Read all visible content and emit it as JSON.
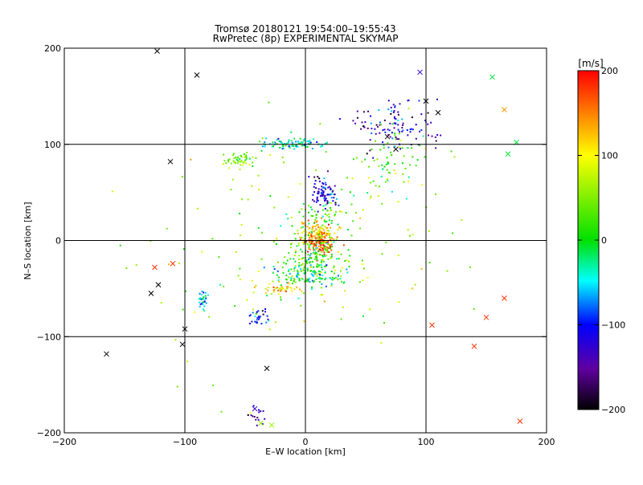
{
  "chart_data": {
    "type": "scatter",
    "title": "Tromsø 20180121 19:54:00–19:55:43",
    "subtitle": "RwPretec (8p) EXPERIMENTAL SKYMAP",
    "xlabel": "E–W location [km]",
    "ylabel": "N–S location [km]",
    "xlim": [
      -200,
      200
    ],
    "ylim": [
      -200,
      200
    ],
    "xticks": [
      -200,
      -100,
      0,
      100,
      200
    ],
    "yticks": [
      -200,
      -100,
      0,
      100,
      200
    ],
    "grid": true,
    "colorbar": {
      "label": "[m/s]",
      "range": [
        -200,
        200
      ],
      "ticks": [
        200,
        100,
        0,
        -100,
        -200
      ],
      "colormap": "rainbow"
    },
    "clusters": [
      {
        "x": 12,
        "y": -2,
        "spread": [
          10,
          10
        ],
        "velocity": 165,
        "count": 140
      },
      {
        "x": 10,
        "y": 10,
        "spread": [
          14,
          10
        ],
        "velocity": 110,
        "count": 90
      },
      {
        "x": 5,
        "y": -20,
        "spread": [
          22,
          22
        ],
        "velocity": 25,
        "count": 190
      },
      {
        "x": 0,
        "y": -35,
        "spread": [
          25,
          12
        ],
        "velocity": -30,
        "count": 90
      },
      {
        "x": 15,
        "y": 50,
        "spread": [
          10,
          12
        ],
        "velocity": -120,
        "count": 90
      },
      {
        "x": 15,
        "y": 25,
        "spread": [
          25,
          15
        ],
        "velocity": 10,
        "count": 60
      },
      {
        "x": -10,
        "y": 100,
        "spread": [
          22,
          5
        ],
        "velocity": -40,
        "count": 90
      },
      {
        "x": -55,
        "y": 85,
        "spread": [
          10,
          6
        ],
        "velocity": 40,
        "count": 50
      },
      {
        "x": -20,
        "y": -50,
        "spread": [
          14,
          5
        ],
        "velocity": 120,
        "count": 40
      },
      {
        "x": -85,
        "y": -60,
        "spread": [
          3,
          8
        ],
        "velocity": -60,
        "count": 30
      },
      {
        "x": -40,
        "y": -80,
        "spread": [
          8,
          10
        ],
        "velocity": -100,
        "count": 30
      },
      {
        "x": 80,
        "y": 120,
        "spread": [
          28,
          25
        ],
        "velocity": -130,
        "count": 110
      },
      {
        "x": 70,
        "y": 80,
        "spread": [
          20,
          25
        ],
        "velocity": 20,
        "count": 60
      },
      {
        "x": -40,
        "y": -180,
        "spread": [
          8,
          10
        ],
        "velocity": -140,
        "count": 15
      },
      {
        "x": 0,
        "y": 0,
        "spread": [
          110,
          110
        ],
        "velocity": 60,
        "count": 150
      }
    ],
    "markers": [
      {
        "x": -165,
        "y": -118,
        "velocity": -210
      },
      {
        "x": -100,
        "y": -92,
        "velocity": -210
      },
      {
        "x": -102,
        "y": -108,
        "velocity": -210
      },
      {
        "x": -128,
        "y": -55,
        "velocity": -210
      },
      {
        "x": -122,
        "y": -46,
        "velocity": -210
      },
      {
        "x": -112,
        "y": 82,
        "velocity": -210
      },
      {
        "x": -90,
        "y": 172,
        "velocity": -210
      },
      {
        "x": -123,
        "y": 197,
        "velocity": -210
      },
      {
        "x": -32,
        "y": -133,
        "velocity": -210
      },
      {
        "x": 100,
        "y": 145,
        "velocity": -210
      },
      {
        "x": 75,
        "y": 95,
        "velocity": -210
      },
      {
        "x": 68,
        "y": 108,
        "velocity": -210
      },
      {
        "x": 110,
        "y": 133,
        "velocity": -210
      },
      {
        "x": 95,
        "y": 175,
        "velocity": -130
      },
      {
        "x": -42,
        "y": -175,
        "velocity": -130
      },
      {
        "x": -28,
        "y": -192,
        "velocity": 60
      },
      {
        "x": -37,
        "y": -190,
        "velocity": 60
      },
      {
        "x": -125,
        "y": -28,
        "velocity": 180
      },
      {
        "x": -110,
        "y": -24,
        "velocity": 180
      },
      {
        "x": 105,
        "y": -88,
        "velocity": 180
      },
      {
        "x": 140,
        "y": -110,
        "velocity": 180
      },
      {
        "x": 165,
        "y": -60,
        "velocity": 180
      },
      {
        "x": 150,
        "y": -80,
        "velocity": 180
      },
      {
        "x": 165,
        "y": 136,
        "velocity": 140
      },
      {
        "x": 178,
        "y": -188,
        "velocity": 180
      },
      {
        "x": 155,
        "y": 170,
        "velocity": -10
      },
      {
        "x": 175,
        "y": 102,
        "velocity": -10
      },
      {
        "x": 168,
        "y": 90,
        "velocity": -10
      }
    ]
  }
}
